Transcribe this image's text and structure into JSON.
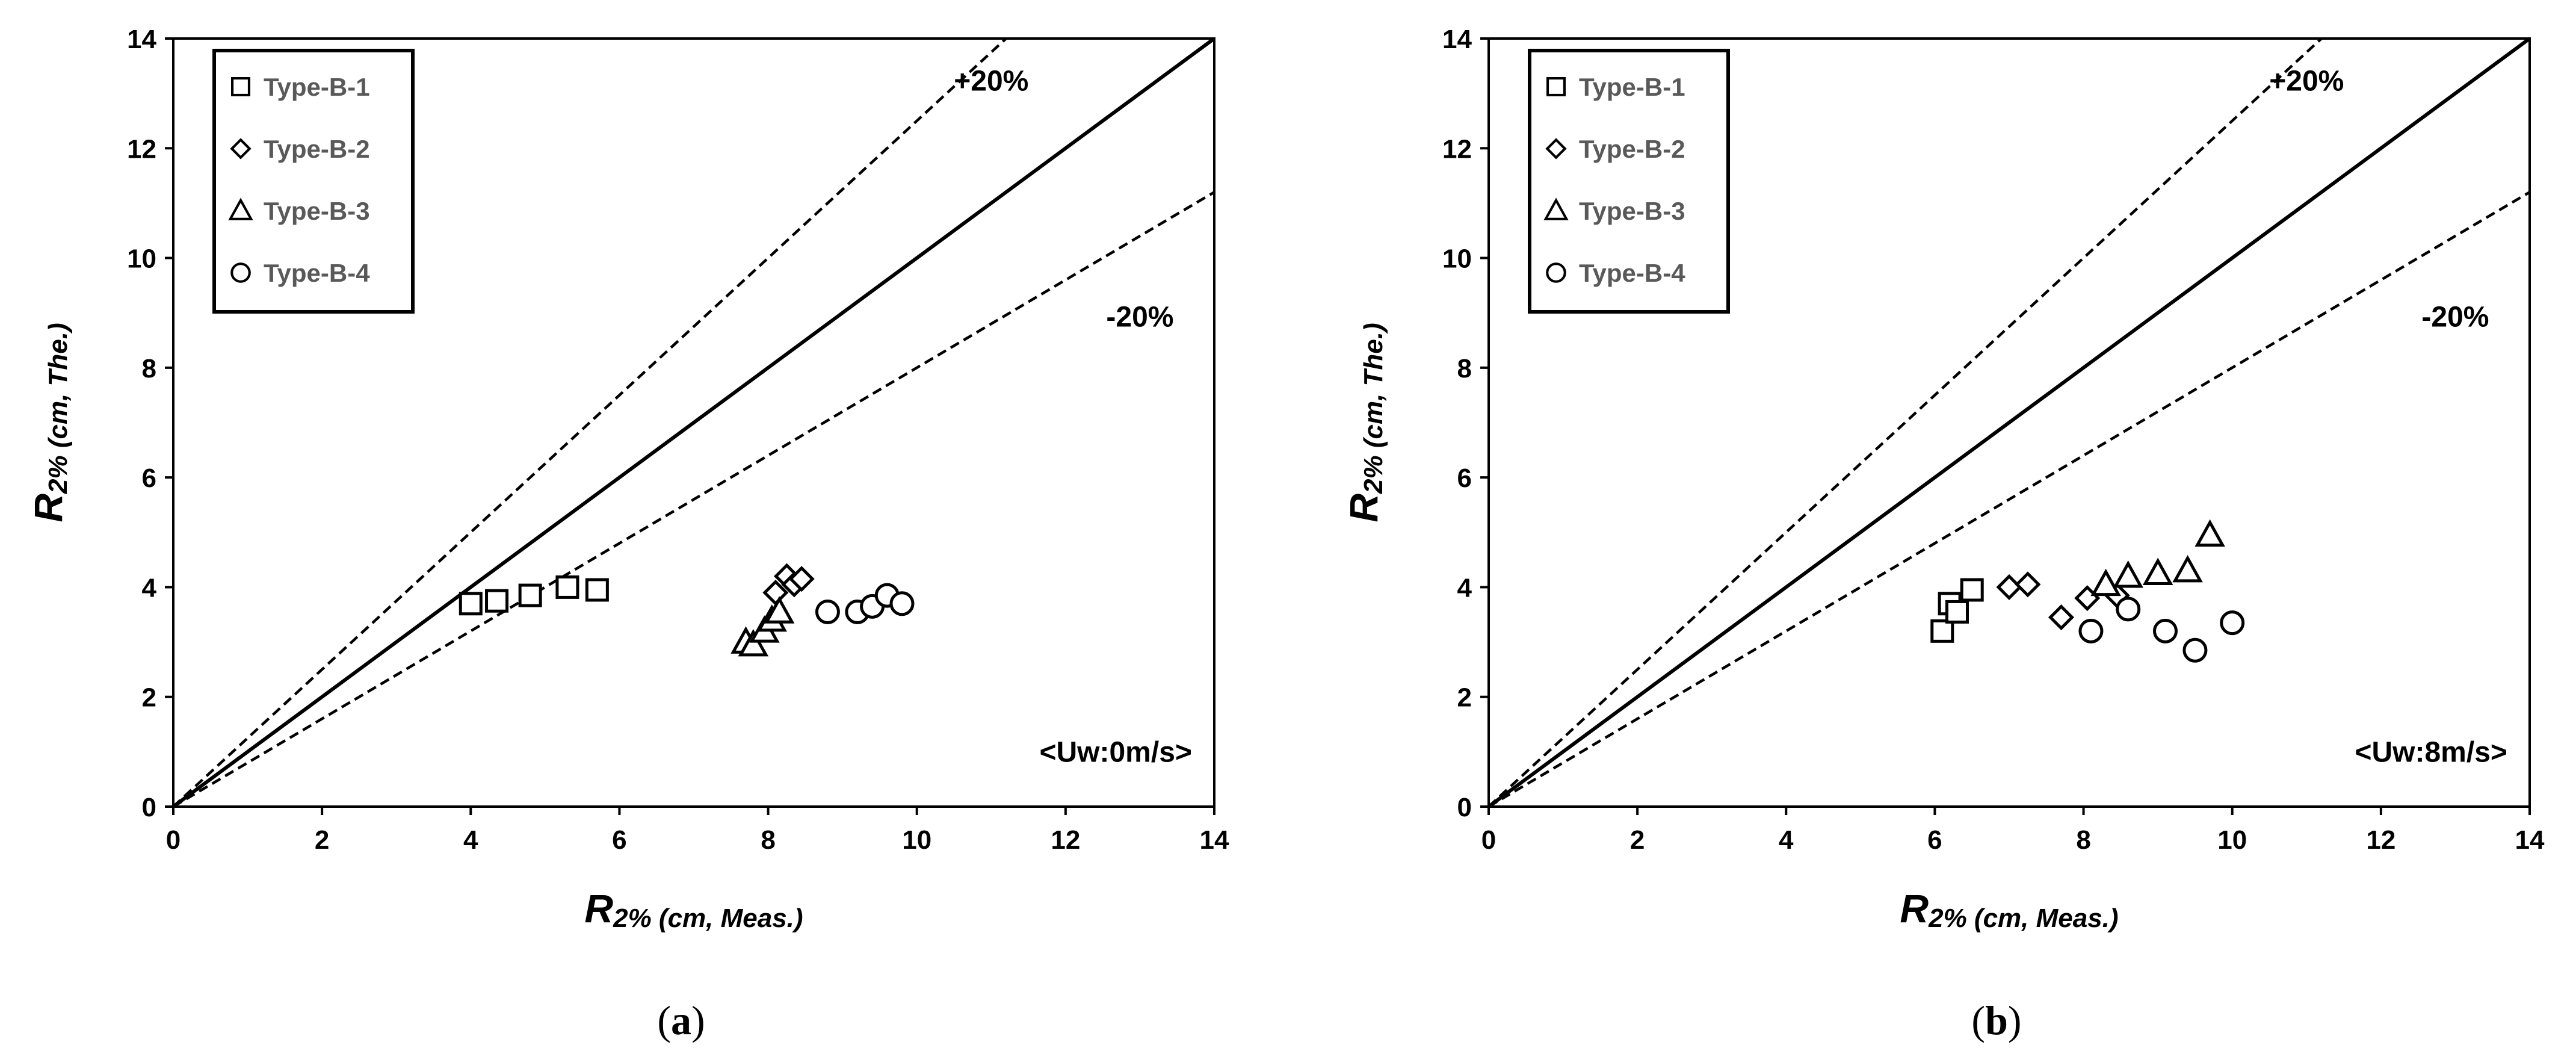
{
  "chart_data": [
    {
      "type": "scatter",
      "panel_label": "a",
      "caption": "(a)",
      "xlabel": {
        "main": "R",
        "sub": "2% (cm, Meas.)"
      },
      "ylabel": {
        "main": "R",
        "sub": "2% (cm, The.)"
      },
      "xlim": [
        0,
        14
      ],
      "ylim": [
        0,
        14
      ],
      "xticks": [
        0,
        2,
        4,
        6,
        8,
        10,
        12,
        14
      ],
      "yticks": [
        0,
        2,
        4,
        6,
        8,
        10,
        12,
        14
      ],
      "grid": false,
      "legend_position": "top-left",
      "reference_lines": [
        {
          "name": "perfect-agreement",
          "slope": 1.0,
          "style": "solid"
        },
        {
          "name": "plus-20",
          "slope": 1.25,
          "style": "dashed",
          "label": "+20%"
        },
        {
          "name": "minus-20",
          "slope": 0.8,
          "style": "dashed",
          "label": "-20%"
        }
      ],
      "annotation": "<Uw:0m/s>",
      "series": [
        {
          "name": "Type-B-1",
          "marker": "square",
          "x": [
            4.0,
            4.35,
            4.8,
            5.3,
            5.7
          ],
          "y": [
            3.7,
            3.75,
            3.85,
            4.0,
            3.95
          ]
        },
        {
          "name": "Type-B-2",
          "marker": "diamond",
          "x": [
            8.1,
            8.25,
            8.35,
            8.45
          ],
          "y": [
            3.9,
            4.2,
            4.05,
            4.15
          ]
        },
        {
          "name": "Type-B-3",
          "marker": "triangle",
          "x": [
            7.7,
            7.8,
            7.95,
            8.05,
            8.15
          ],
          "y": [
            3.0,
            2.95,
            3.2,
            3.4,
            3.55
          ]
        },
        {
          "name": "Type-B-4",
          "marker": "circle",
          "x": [
            8.8,
            9.2,
            9.4,
            9.6,
            9.8
          ],
          "y": [
            3.55,
            3.55,
            3.65,
            3.85,
            3.7
          ]
        }
      ]
    },
    {
      "type": "scatter",
      "panel_label": "b",
      "caption": "(b)",
      "xlabel": {
        "main": "R",
        "sub": "2% (cm, Meas.)"
      },
      "ylabel": {
        "main": "R",
        "sub": "2% (cm, The.)"
      },
      "xlim": [
        0,
        14
      ],
      "ylim": [
        0,
        14
      ],
      "xticks": [
        0,
        2,
        4,
        6,
        8,
        10,
        12,
        14
      ],
      "yticks": [
        0,
        2,
        4,
        6,
        8,
        10,
        12,
        14
      ],
      "grid": false,
      "legend_position": "top-left",
      "reference_lines": [
        {
          "name": "perfect-agreement",
          "slope": 1.0,
          "style": "solid"
        },
        {
          "name": "plus-20",
          "slope": 1.25,
          "style": "dashed",
          "label": "+20%"
        },
        {
          "name": "minus-20",
          "slope": 0.8,
          "style": "dashed",
          "label": "-20%"
        }
      ],
      "annotation": "<Uw:8m/s>",
      "series": [
        {
          "name": "Type-B-1",
          "marker": "square",
          "x": [
            6.1,
            6.2,
            6.3,
            6.5
          ],
          "y": [
            3.2,
            3.7,
            3.55,
            3.95
          ]
        },
        {
          "name": "Type-B-2",
          "marker": "diamond",
          "x": [
            7.0,
            7.25,
            7.7,
            8.05,
            8.45
          ],
          "y": [
            4.0,
            4.05,
            3.45,
            3.8,
            3.85
          ]
        },
        {
          "name": "Type-B-3",
          "marker": "triangle",
          "x": [
            8.3,
            8.6,
            9.0,
            9.4,
            9.7
          ],
          "y": [
            4.05,
            4.2,
            4.25,
            4.3,
            4.95
          ]
        },
        {
          "name": "Type-B-4",
          "marker": "circle",
          "x": [
            8.1,
            8.6,
            9.1,
            9.5,
            10.0
          ],
          "y": [
            3.2,
            3.6,
            3.2,
            2.85,
            3.35
          ]
        }
      ]
    }
  ]
}
